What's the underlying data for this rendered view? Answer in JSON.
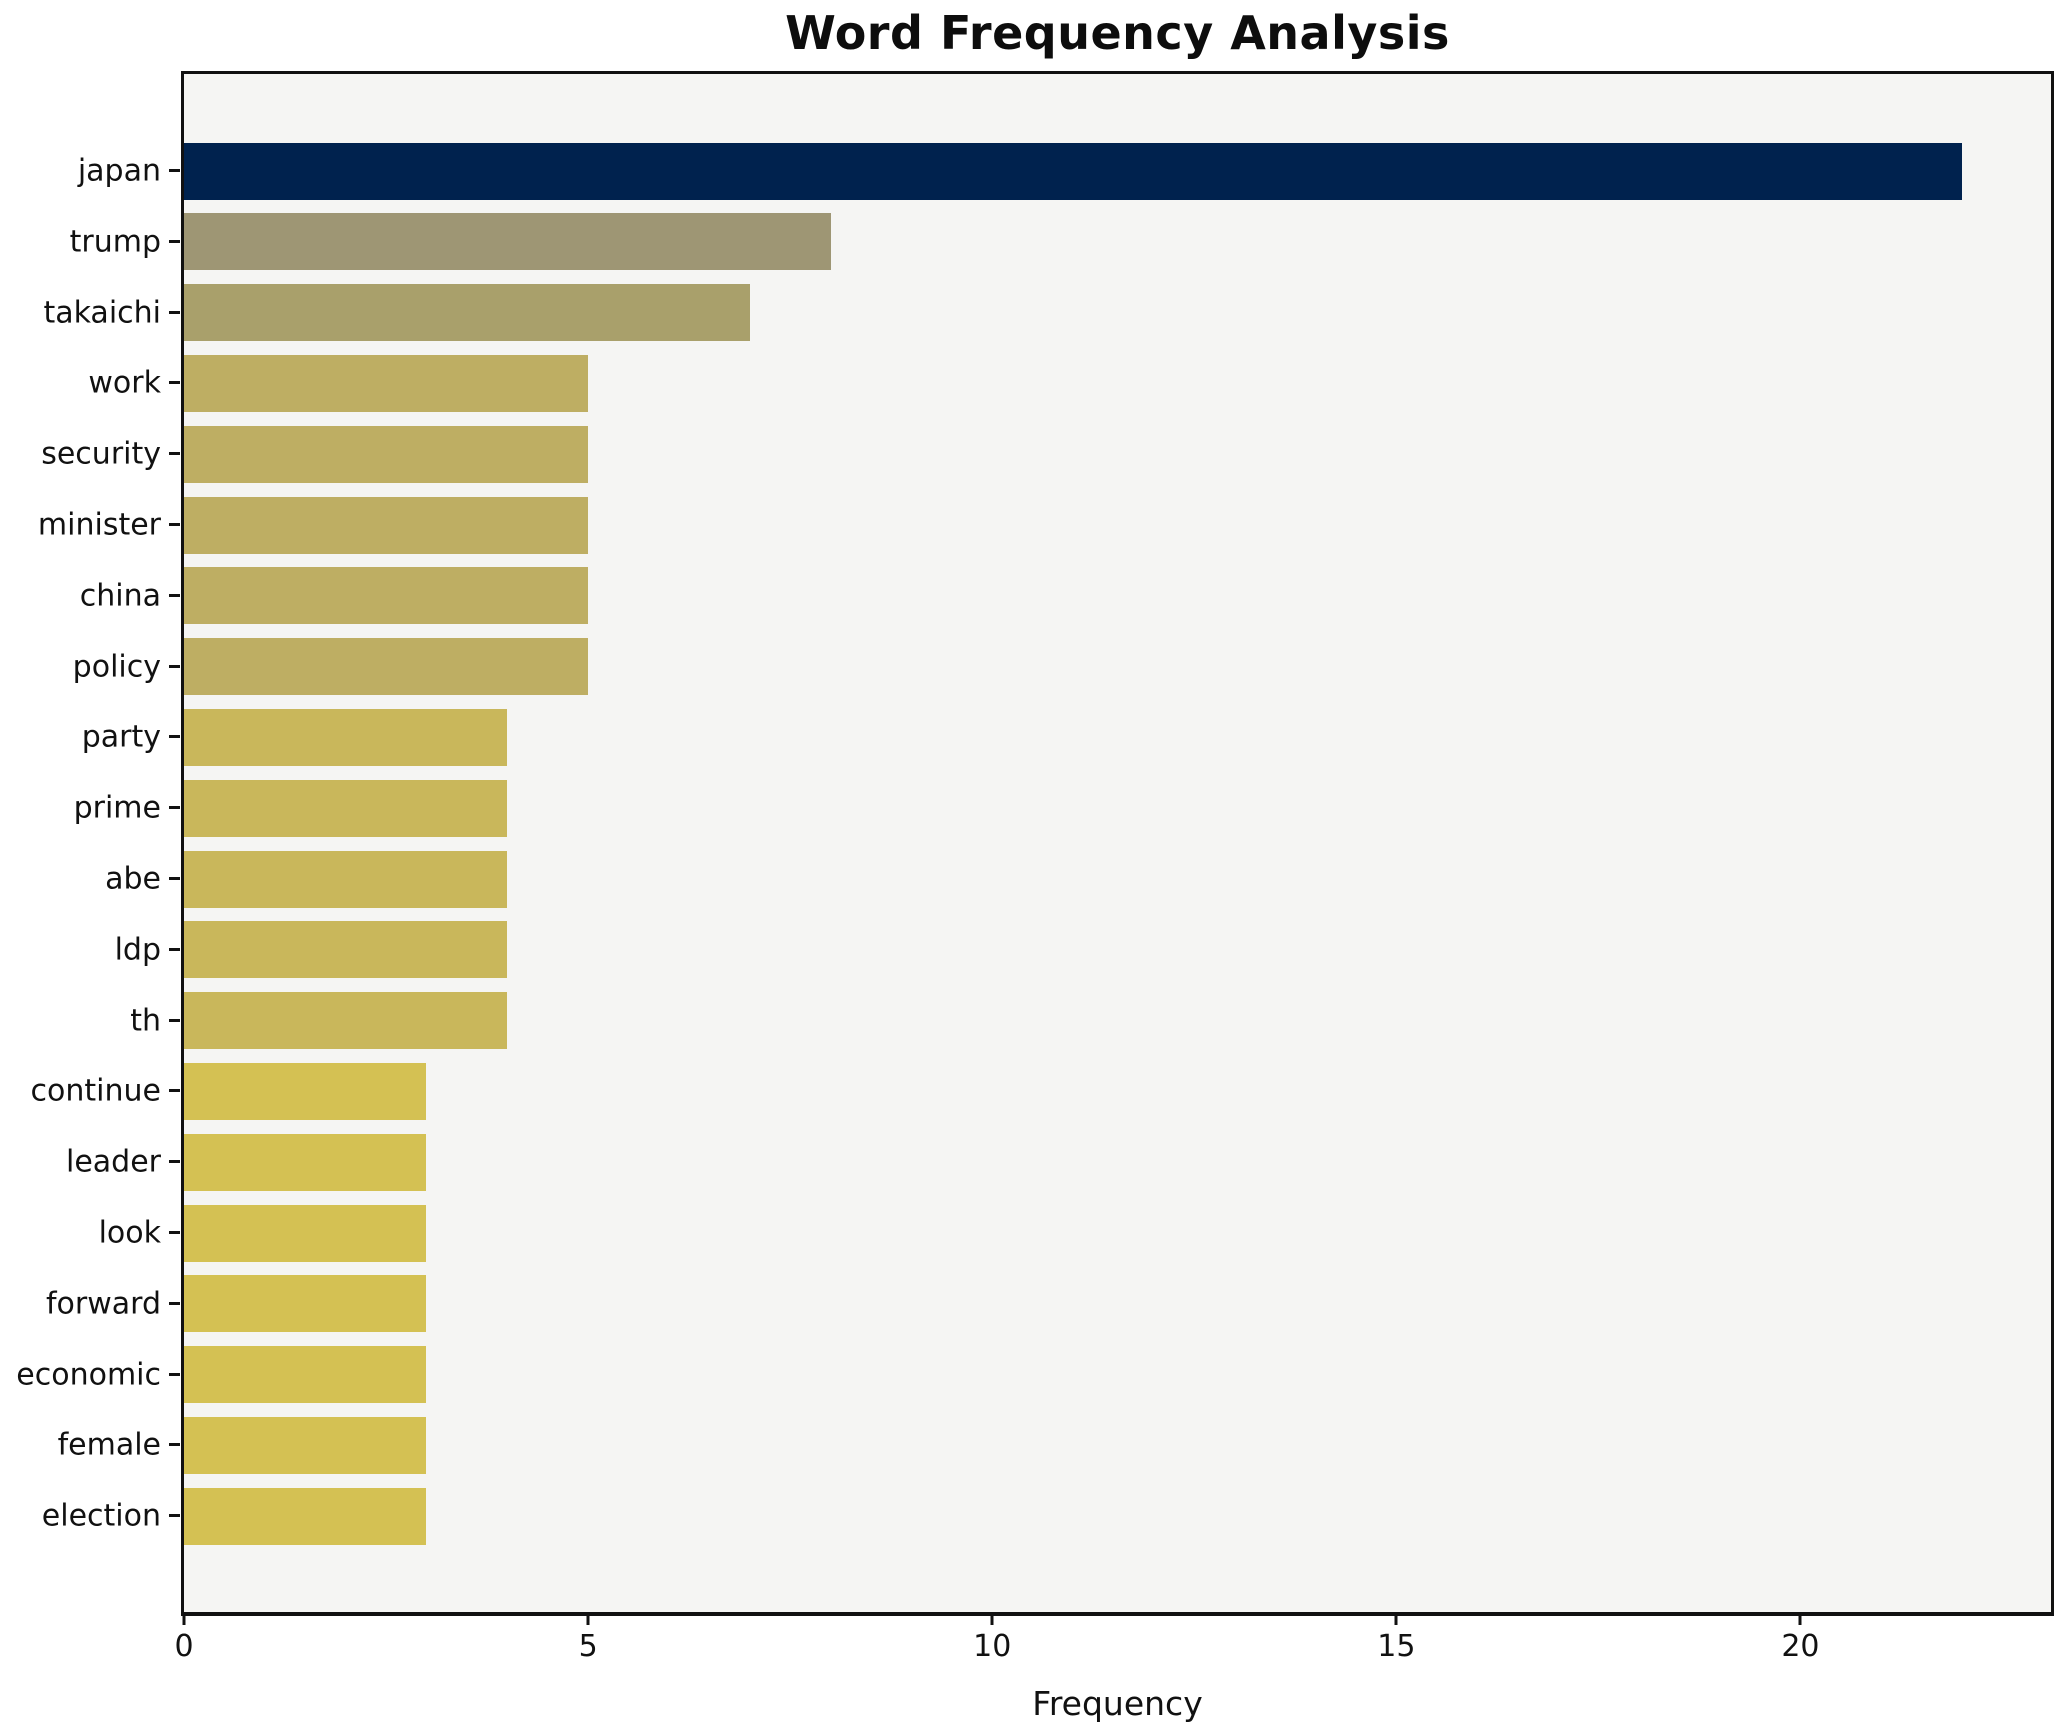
{
  "figure": {
    "background_color": "#ffffff",
    "plot_background_color": "#f5f5f3",
    "spine_color": "#111111",
    "text_color": "#111111"
  },
  "chart_data": {
    "type": "bar",
    "orientation": "horizontal",
    "title": "Word Frequency Analysis",
    "xlabel": "Frequency",
    "ylabel": "",
    "categories": [
      "japan",
      "trump",
      "takaichi",
      "work",
      "security",
      "minister",
      "china",
      "policy",
      "party",
      "prime",
      "abe",
      "ldp",
      "th",
      "continue",
      "leader",
      "look",
      "forward",
      "economic",
      "female",
      "election"
    ],
    "values": [
      22,
      8,
      7,
      5,
      5,
      5,
      5,
      5,
      4,
      4,
      4,
      4,
      4,
      3,
      3,
      3,
      3,
      3,
      3,
      3
    ],
    "bar_colors": [
      "#00224e",
      "#9e9674",
      "#a9a06b",
      "#beae63",
      "#beae63",
      "#beae63",
      "#beae63",
      "#beae63",
      "#c9b75b",
      "#c9b75b",
      "#c9b75b",
      "#c9b75b",
      "#c9b75b",
      "#d4c153",
      "#d4c153",
      "#d4c153",
      "#d4c153",
      "#d4c153",
      "#d4c153",
      "#d4c153"
    ],
    "xlim": [
      0,
      23.1
    ],
    "xticks": [
      0,
      5,
      10,
      15,
      20
    ],
    "xtick_labels": [
      "0",
      "5",
      "10",
      "15",
      "20"
    ],
    "grid": false,
    "legend": false
  }
}
